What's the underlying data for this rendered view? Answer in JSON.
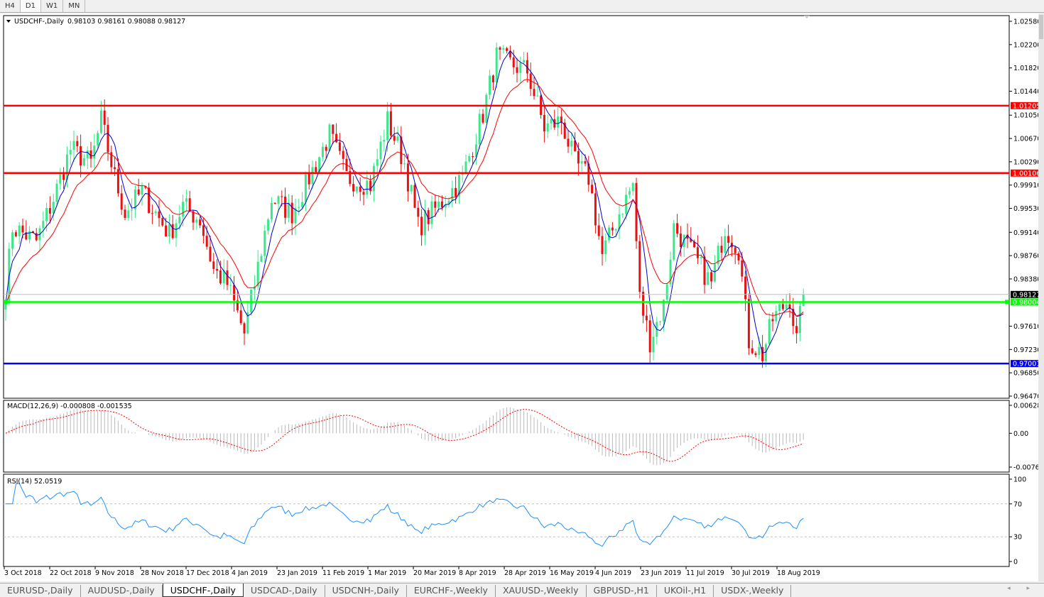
{
  "timeframes": [
    {
      "label": "H4",
      "active": false
    },
    {
      "label": "D1",
      "active": true
    },
    {
      "label": "W1",
      "active": false
    },
    {
      "label": "MN",
      "active": false
    }
  ],
  "header": {
    "symbol": "USDCHF-,Daily",
    "ohlc": "0.98103 0.98161 0.98088 0.98127"
  },
  "chart_data": {
    "type": "candlestick",
    "price_axis": {
      "ticks": [
        "1.02580",
        "1.02200",
        "1.01820",
        "1.01440",
        "1.01050",
        "1.00670",
        "1.00290",
        "0.99910",
        "0.99530",
        "0.99140",
        "0.98760",
        "0.98380",
        "0.97610",
        "0.97230",
        "0.96850",
        "0.96470"
      ],
      "range": [
        0.9647,
        1.0258
      ]
    },
    "date_ticks": [
      "3 Oct 2018",
      "22 Oct 2018",
      "9 Nov 2018",
      "28 Nov 2018",
      "17 Dec 2018",
      "4 Jan 2019",
      "23 Jan 2019",
      "11 Feb 2019",
      "1 Mar 2019",
      "20 Mar 2019",
      "8 Apr 2019",
      "28 Apr 2019",
      "16 May 2019",
      "4 Jun 2019",
      "23 Jun 2019",
      "11 Jul 2019",
      "30 Jul 2019",
      "18 Aug 2019"
    ],
    "close_keypoints": [
      [
        0,
        0.98183
      ],
      [
        2,
        0.99225
      ],
      [
        9,
        0.98993
      ],
      [
        14,
        0.99687
      ],
      [
        19,
        1.00497
      ],
      [
        25,
        1.00266
      ],
      [
        28,
        1.0096
      ],
      [
        32,
        1.00035
      ],
      [
        35,
        0.99456
      ],
      [
        40,
        0.99803
      ],
      [
        48,
        0.99109
      ],
      [
        52,
        0.99572
      ],
      [
        57,
        0.9934
      ],
      [
        61,
        0.9853
      ],
      [
        65,
        0.98299
      ],
      [
        70,
        0.97489
      ],
      [
        73,
        0.98299
      ],
      [
        78,
        0.99687
      ],
      [
        84,
        0.99456
      ],
      [
        90,
        1.0015
      ],
      [
        95,
        1.00729
      ],
      [
        100,
        1.00035
      ],
      [
        107,
        0.99919
      ],
      [
        112,
        1.0096
      ],
      [
        117,
        1.00266
      ],
      [
        121,
        0.99225
      ],
      [
        127,
        0.99572
      ],
      [
        134,
        1.00035
      ],
      [
        140,
        1.01076
      ],
      [
        144,
        1.02001
      ],
      [
        148,
        1.01886
      ],
      [
        153,
        1.0177
      ],
      [
        158,
        1.00844
      ],
      [
        163,
        1.0096
      ],
      [
        167,
        1.00266
      ],
      [
        171,
        1.00035
      ],
      [
        175,
        0.98762
      ],
      [
        180,
        0.99456
      ],
      [
        184,
        0.99919
      ],
      [
        186,
        0.98068
      ],
      [
        189,
        0.97373
      ],
      [
        193,
        0.97952
      ],
      [
        196,
        0.99225
      ],
      [
        199,
        0.98993
      ],
      [
        203,
        0.98646
      ],
      [
        207,
        0.98299
      ],
      [
        211,
        0.99225
      ],
      [
        215,
        0.98878
      ],
      [
        218,
        0.97373
      ],
      [
        222,
        0.97142
      ],
      [
        225,
        0.97721
      ],
      [
        230,
        0.98068
      ],
      [
        232,
        0.97373
      ],
      [
        234,
        0.98127
      ]
    ],
    "current_price": {
      "value": 0.98127,
      "label": "0.98127"
    },
    "levels": [
      {
        "value": 1.01205,
        "label": "1.01205",
        "color": "#ff0000"
      },
      {
        "value": 1.00106,
        "label": "1.00106",
        "color": "#ff0000"
      },
      {
        "value": 0.98004,
        "label": "0.98004",
        "color": "#00ff00"
      },
      {
        "value": 0.97001,
        "label": "0.97001",
        "color": "#0000ff"
      }
    ],
    "colors": {
      "bull": "#3ce68c",
      "bear": "#e81010",
      "ma_fast": "#0000cc",
      "ma_slow": "#ff0000"
    },
    "macd": {
      "label": "MACD(12,26,9) -0.000808 -0.001535",
      "ticks": [
        "0.006286",
        "0.00",
        "-0.00762"
      ],
      "range": [
        -0.00762,
        0.006286
      ]
    },
    "rsi": {
      "label": "RSI(14) 52.0519",
      "ticks": [
        "100",
        "70",
        "30",
        "0"
      ],
      "levels": [
        70,
        30
      ],
      "range": [
        0,
        100
      ]
    }
  },
  "tabs": [
    {
      "label": "EURUSD-,Daily"
    },
    {
      "label": "AUDUSD-,Daily"
    },
    {
      "label": "USDCHF-,Daily",
      "active": true
    },
    {
      "label": "USDCAD-,Daily"
    },
    {
      "label": "USDCNH-,Daily"
    },
    {
      "label": "EURCHF-,Weekly"
    },
    {
      "label": "XAUUSD-,Weekly"
    },
    {
      "label": "GBPUSD-,H1"
    },
    {
      "label": "UKOil-,H1"
    },
    {
      "label": "USDX-,Weekly"
    }
  ],
  "tab_arrows": "◂ ▸"
}
